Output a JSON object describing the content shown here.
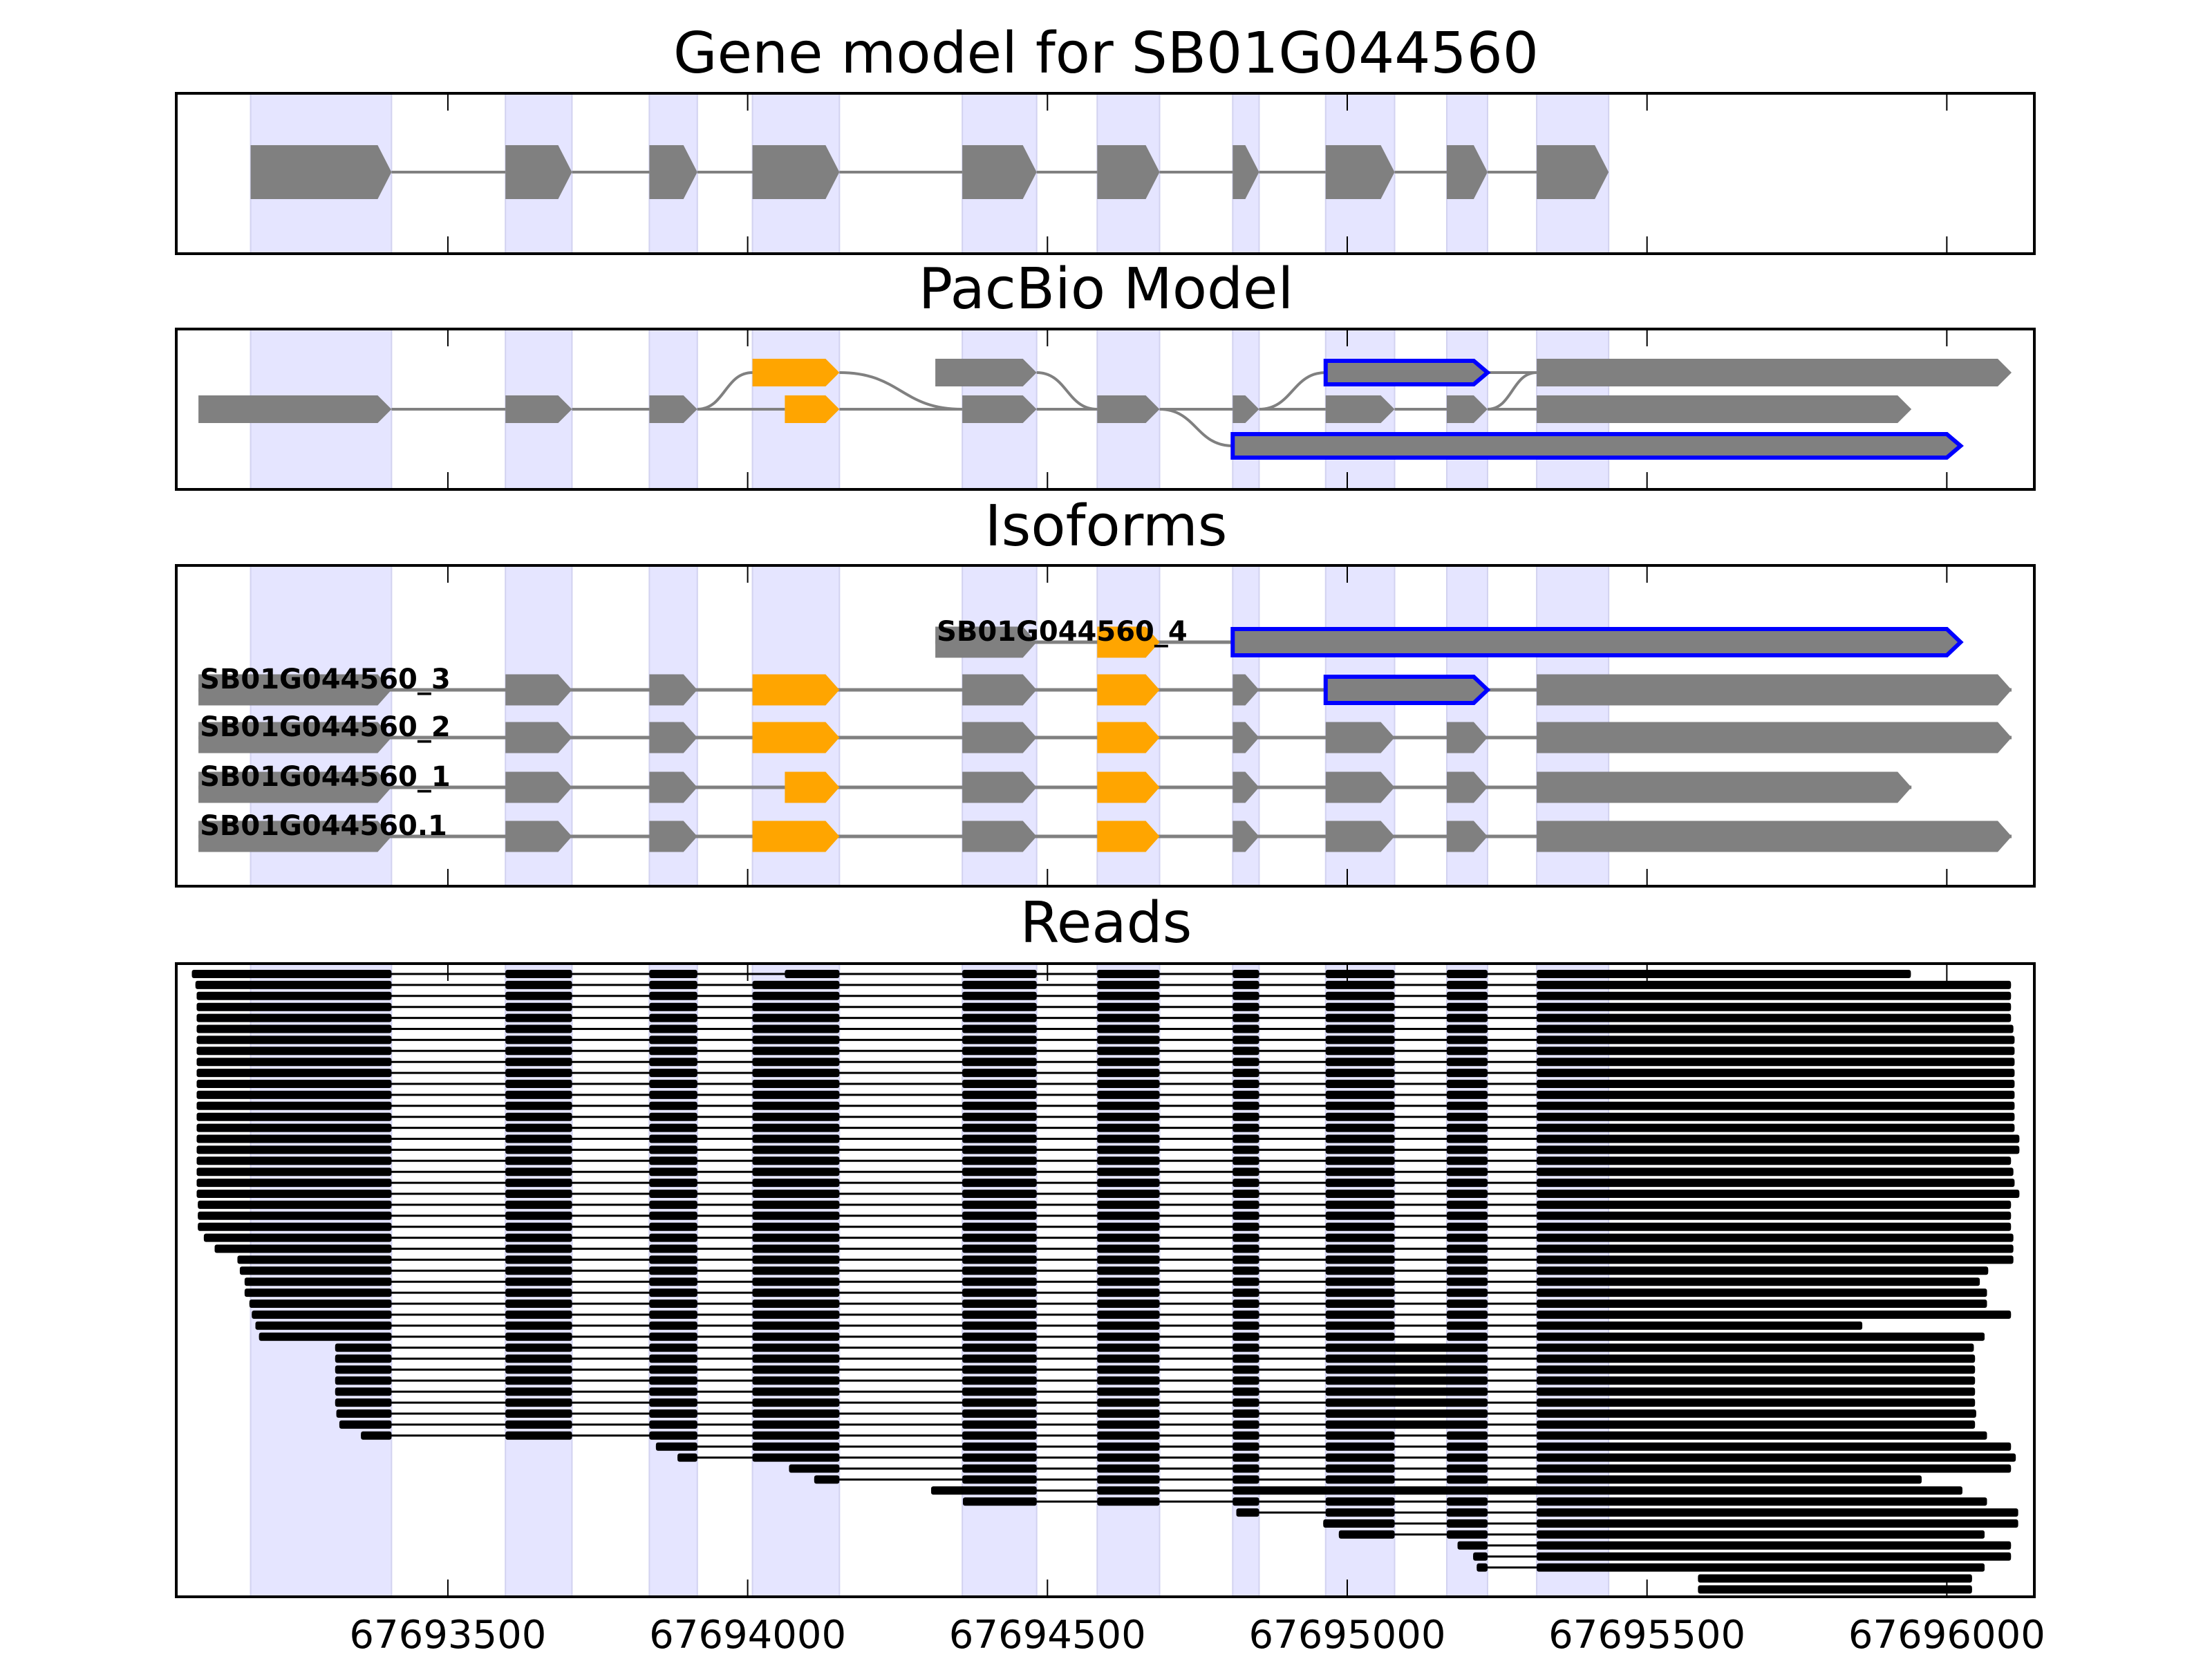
{
  "chart_data": {
    "type": "gene_structure",
    "xlim": [
      67693047,
      67696146
    ],
    "xticks": [
      67693500,
      67694000,
      67694500,
      67695000,
      67695500,
      67696000
    ],
    "xtick_labels": [
      "67693500",
      "67694000",
      "67694500",
      "67695000",
      "67695500",
      "67696000"
    ],
    "grid": false,
    "colors": {
      "exon": "#808080",
      "alternative_exon": "#ffa500",
      "novel_outline": "#0000ff",
      "highlight_band": "#e5e5ff",
      "highlight_band_edge": "#d2d2f0",
      "read": "#000000",
      "axes": "#000000"
    },
    "highlight_regions": [
      [
        67693171,
        67693406
      ],
      [
        67693596,
        67693707
      ],
      [
        67693836,
        67693916
      ],
      [
        67694008,
        67694153
      ],
      [
        67694358,
        67694482
      ],
      [
        67694583,
        67694687
      ],
      [
        67694809,
        67694853
      ],
      [
        67694964,
        67695079
      ],
      [
        67695166,
        67695234
      ],
      [
        67695316,
        67695436
      ]
    ],
    "panels": [
      {
        "id": "gene_model",
        "title": "Gene model for SB01G044560"
      },
      {
        "id": "pacbio",
        "title": "PacBio Model"
      },
      {
        "id": "isoforms",
        "title": "Isoforms"
      },
      {
        "id": "reads",
        "title": "Reads"
      }
    ],
    "gene_model": {
      "exons": [
        [
          67693171,
          67693406
        ],
        [
          67693596,
          67693707
        ],
        [
          67693836,
          67693916
        ],
        [
          67694008,
          67694153
        ],
        [
          67694358,
          67694482
        ],
        [
          67694583,
          67694687
        ],
        [
          67694809,
          67694853
        ],
        [
          67694964,
          67695079
        ],
        [
          67695166,
          67695234
        ],
        [
          67695316,
          67695436
        ]
      ]
    },
    "pacbio_model": {
      "nodes": [
        {
          "start": 67693084,
          "end": 67693406,
          "row": 1,
          "kind": "constant"
        },
        {
          "start": 67693596,
          "end": 67693707,
          "row": 1,
          "kind": "constant"
        },
        {
          "start": 67693836,
          "end": 67693916,
          "row": 1,
          "kind": "constant"
        },
        {
          "start": 67694008,
          "end": 67694153,
          "row": 0,
          "kind": "alternative"
        },
        {
          "start": 67694062,
          "end": 67694153,
          "row": 1,
          "kind": "alternative"
        },
        {
          "start": 67694313,
          "end": 67694482,
          "row": 0,
          "kind": "constant"
        },
        {
          "start": 67694358,
          "end": 67694482,
          "row": 1,
          "kind": "constant"
        },
        {
          "start": 67694583,
          "end": 67694687,
          "row": 1,
          "kind": "constant"
        },
        {
          "start": 67694809,
          "end": 67694853,
          "row": 1,
          "kind": "constant"
        },
        {
          "start": 67694964,
          "end": 67695234,
          "row": 0,
          "kind": "novel"
        },
        {
          "start": 67695316,
          "end": 67696108,
          "row": 0,
          "kind": "constant"
        },
        {
          "start": 67694964,
          "end": 67695079,
          "row": 1,
          "kind": "constant"
        },
        {
          "start": 67695166,
          "end": 67695234,
          "row": 1,
          "kind": "constant"
        },
        {
          "start": 67695316,
          "end": 67695941,
          "row": 1,
          "kind": "constant"
        },
        {
          "start": 67694809,
          "end": 67696023,
          "row": 2,
          "kind": "novel"
        }
      ],
      "edges": [
        [
          0,
          1
        ],
        [
          1,
          2
        ],
        [
          2,
          3
        ],
        [
          2,
          4
        ],
        [
          3,
          6
        ],
        [
          4,
          6
        ],
        [
          5,
          7
        ],
        [
          6,
          7
        ],
        [
          7,
          8
        ],
        [
          7,
          14
        ],
        [
          8,
          9
        ],
        [
          8,
          11
        ],
        [
          11,
          12
        ],
        [
          12,
          10
        ],
        [
          12,
          13
        ],
        [
          9,
          10
        ]
      ]
    },
    "isoforms": [
      {
        "name": "SB01G044560_4",
        "exons": [
          [
            67694313,
            67694482
          ],
          [
            67694583,
            67694687
          ],
          [
            67694809,
            67696023
          ]
        ],
        "kinds": [
          "constant",
          "alternative",
          "novel"
        ]
      },
      {
        "name": "SB01G044560_3",
        "exons": [
          [
            67693084,
            67693406
          ],
          [
            67693596,
            67693707
          ],
          [
            67693836,
            67693916
          ],
          [
            67694008,
            67694153
          ],
          [
            67694358,
            67694482
          ],
          [
            67694583,
            67694687
          ],
          [
            67694809,
            67694853
          ],
          [
            67694964,
            67695234
          ],
          [
            67695316,
            67696108
          ]
        ],
        "kinds": [
          "constant",
          "constant",
          "constant",
          "alternative",
          "constant",
          "alternative",
          "constant",
          "novel",
          "constant"
        ]
      },
      {
        "name": "SB01G044560_2",
        "exons": [
          [
            67693084,
            67693406
          ],
          [
            67693596,
            67693707
          ],
          [
            67693836,
            67693916
          ],
          [
            67694008,
            67694153
          ],
          [
            67694358,
            67694482
          ],
          [
            67694583,
            67694687
          ],
          [
            67694809,
            67694853
          ],
          [
            67694964,
            67695079
          ],
          [
            67695166,
            67695234
          ],
          [
            67695316,
            67696108
          ]
        ],
        "kinds": [
          "constant",
          "constant",
          "constant",
          "alternative",
          "constant",
          "alternative",
          "constant",
          "constant",
          "constant",
          "constant"
        ]
      },
      {
        "name": "SB01G044560_1",
        "exons": [
          [
            67693084,
            67693406
          ],
          [
            67693596,
            67693707
          ],
          [
            67693836,
            67693916
          ],
          [
            67694062,
            67694153
          ],
          [
            67694358,
            67694482
          ],
          [
            67694583,
            67694687
          ],
          [
            67694809,
            67694853
          ],
          [
            67694964,
            67695079
          ],
          [
            67695166,
            67695234
          ],
          [
            67695316,
            67695941
          ]
        ],
        "kinds": [
          "constant",
          "constant",
          "constant",
          "alternative",
          "constant",
          "alternative",
          "constant",
          "constant",
          "constant",
          "constant"
        ]
      },
      {
        "name": "SB01G044560.1",
        "exons": [
          [
            67693084,
            67693406
          ],
          [
            67693596,
            67693707
          ],
          [
            67693836,
            67693916
          ],
          [
            67694008,
            67694153
          ],
          [
            67694358,
            67694482
          ],
          [
            67694583,
            67694687
          ],
          [
            67694809,
            67694853
          ],
          [
            67694964,
            67695079
          ],
          [
            67695166,
            67695234
          ],
          [
            67695316,
            67696108
          ]
        ],
        "kinds": [
          "constant",
          "constant",
          "constant",
          "alternative",
          "constant",
          "alternative",
          "constant",
          "constant",
          "constant",
          "constant"
        ]
      }
    ],
    "reads": [
      [
        67693073,
        67695940,
        "SB01G044560_1"
      ],
      [
        67693079,
        67696107,
        "SB01G044560_2"
      ],
      [
        67693081,
        67696107,
        "SB01G044560_2"
      ],
      [
        67693081,
        67696107,
        "SB01G044560_2"
      ],
      [
        67693081,
        67696107,
        "SB01G044560_2"
      ],
      [
        67693081,
        67696111,
        "SB01G044560_2"
      ],
      [
        67693081,
        67696113,
        "SB01G044560_2"
      ],
      [
        67693081,
        67696113,
        "SB01G044560_2"
      ],
      [
        67693081,
        67696113,
        "SB01G044560_2"
      ],
      [
        67693081,
        67696113,
        "SB01G044560_2"
      ],
      [
        67693081,
        67696113,
        "SB01G044560_2"
      ],
      [
        67693081,
        67696113,
        "SB01G044560_2"
      ],
      [
        67693081,
        67696113,
        "SB01G044560_2"
      ],
      [
        67693081,
        67696113,
        "SB01G044560_2"
      ],
      [
        67693081,
        67696113,
        "SB01G044560_2"
      ],
      [
        67693081,
        67696121,
        "SB01G044560_2"
      ],
      [
        67693081,
        67696121,
        "SB01G044560_2"
      ],
      [
        67693081,
        67696107,
        "SB01G044560_2"
      ],
      [
        67693081,
        67696111,
        "SB01G044560_2"
      ],
      [
        67693081,
        67696113,
        "SB01G044560_2"
      ],
      [
        67693081,
        67696121,
        "SB01G044560_2"
      ],
      [
        67693083,
        67696107,
        "SB01G044560_2"
      ],
      [
        67693083,
        67696107,
        "SB01G044560_2"
      ],
      [
        67693083,
        67696107,
        "SB01G044560_2"
      ],
      [
        67693093,
        67696111,
        "SB01G044560_2"
      ],
      [
        67693111,
        67696111,
        "SB01G044560_2"
      ],
      [
        67693149,
        67696111,
        "SB01G044560_2"
      ],
      [
        67693153,
        67696069,
        "SB01G044560_2"
      ],
      [
        67693161,
        67696055,
        "SB01G044560_2"
      ],
      [
        67693161,
        67696067,
        "SB01G044560_2"
      ],
      [
        67693169,
        67696067,
        "SB01G044560_2"
      ],
      [
        67693173,
        67696107,
        "SB01G044560_2"
      ],
      [
        67693179,
        67695859,
        "SB01G044560_2"
      ],
      [
        67693185,
        67696063,
        "SB01G044560_2"
      ],
      [
        67693312,
        67696045,
        "SB01G044560_3"
      ],
      [
        67693312,
        67696047,
        "SB01G044560_3"
      ],
      [
        67693312,
        67696047,
        "SB01G044560_3"
      ],
      [
        67693312,
        67696047,
        "SB01G044560_3"
      ],
      [
        67693312,
        67696047,
        "SB01G044560_3"
      ],
      [
        67693312,
        67696047,
        "SB01G044560_3"
      ],
      [
        67693314,
        67696049,
        "SB01G044560_3"
      ],
      [
        67693319,
        67696047,
        "SB01G044560_3"
      ],
      [
        67693355,
        67696067,
        "SB01G044560_2"
      ],
      [
        67693847,
        67696107,
        "SB01G044560_2"
      ],
      [
        67693883,
        67696115,
        "SB01G044560_2"
      ],
      [
        67694069,
        67696107,
        "SB01G044560_2"
      ],
      [
        67694111,
        67695958,
        "SB01G044560_2"
      ],
      [
        67694306,
        67696026,
        "SB01G044560_4"
      ],
      [
        67694359,
        67696067,
        "SB01G044560_2"
      ],
      [
        67694815,
        67696119,
        "SB01G044560_2"
      ],
      [
        67694960,
        67696119,
        "SB01G044560_2"
      ],
      [
        67694986,
        67696063,
        "SB01G044560_2"
      ],
      [
        67695184,
        67696107,
        "SB01G044560_2"
      ],
      [
        67695210,
        67696107,
        "SB01G044560_2"
      ],
      [
        67695216,
        67696063,
        "SB01G044560_2"
      ],
      [
        67695585,
        67696042,
        "SB01G044560_2"
      ],
      [
        67695585,
        67696042,
        "SB01G044560_2"
      ]
    ]
  }
}
